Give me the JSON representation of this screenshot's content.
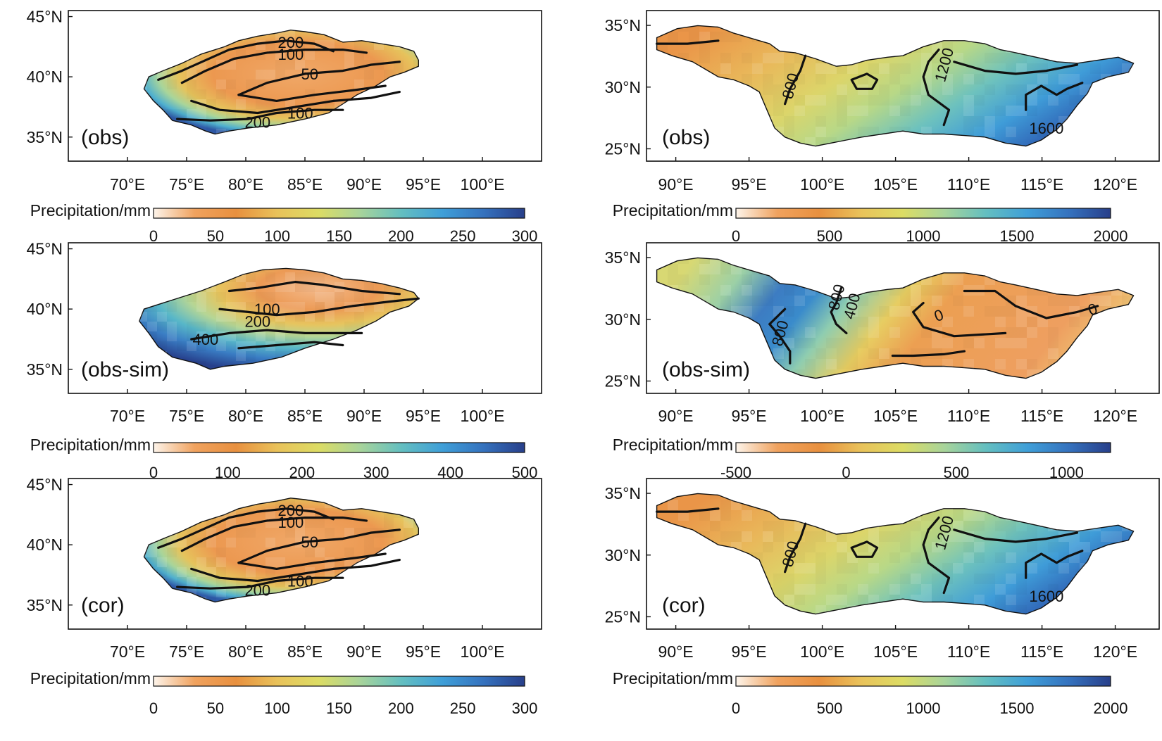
{
  "colormap": {
    "name": "orange-yellow-teal-blue",
    "stops": [
      "#fdf4ea",
      "#f0a25e",
      "#e8903f",
      "#e9c25a",
      "#dcdc64",
      "#a8d49a",
      "#64bfc0",
      "#3f9fd8",
      "#3572be",
      "#283f8a"
    ]
  },
  "panels": [
    {
      "region": "tarim",
      "label": "(obs)",
      "lon_ticks": [
        "70°E",
        "75°E",
        "80°E",
        "85°E",
        "90°E",
        "95°E",
        "100°E"
      ],
      "lat_ticks": [
        "45°N",
        "40°N",
        "35°N"
      ],
      "colorbar": {
        "title": "Precipitation/mm",
        "ticks": [
          "0",
          "50",
          "100",
          "150",
          "200",
          "250",
          "300"
        ],
        "range": [
          0,
          300
        ]
      },
      "contour_labels": [
        "200",
        "100",
        "50",
        "100",
        "200"
      ]
    },
    {
      "region": "yangtze",
      "label": "(obs)",
      "lon_ticks": [
        "90°E",
        "95°E",
        "100°E",
        "105°E",
        "110°E",
        "115°E",
        "120°E"
      ],
      "lat_ticks": [
        "35°N",
        "30°N",
        "25°N"
      ],
      "colorbar": {
        "title": "Precipitation/mm",
        "ticks": [
          "0",
          "500",
          "1000",
          "1500",
          "2000"
        ],
        "range": [
          0,
          2000
        ]
      },
      "contour_labels": [
        "800",
        "1200",
        "1600"
      ]
    },
    {
      "region": "tarim",
      "label": "(obs-sim)",
      "lon_ticks": [
        "70°E",
        "75°E",
        "80°E",
        "85°E",
        "90°E",
        "95°E",
        "100°E"
      ],
      "lat_ticks": [
        "45°N",
        "40°N",
        "35°N"
      ],
      "colorbar": {
        "title": "Precipitation/mm",
        "ticks": [
          "0",
          "100",
          "200",
          "300",
          "400",
          "500"
        ],
        "range": [
          0,
          500
        ]
      },
      "contour_labels": [
        "100",
        "200",
        "400"
      ]
    },
    {
      "region": "yangtze",
      "label": "(obs-sim)",
      "lon_ticks": [
        "90°E",
        "95°E",
        "100°E",
        "105°E",
        "110°E",
        "115°E",
        "120°E"
      ],
      "lat_ticks": [
        "35°N",
        "30°N",
        "25°N"
      ],
      "colorbar": {
        "title": "Precipitation/mm",
        "ticks": [
          "-500",
          "0",
          "500",
          "1000"
        ],
        "range": [
          -500,
          1200
        ]
      },
      "contour_labels": [
        "800",
        "400",
        "0",
        "800",
        "0"
      ]
    },
    {
      "region": "tarim",
      "label": "(cor)",
      "lon_ticks": [
        "70°E",
        "75°E",
        "80°E",
        "85°E",
        "90°E",
        "95°E",
        "100°E"
      ],
      "lat_ticks": [
        "45°N",
        "40°N",
        "35°N"
      ],
      "colorbar": {
        "title": "Precipitation/mm",
        "ticks": [
          "0",
          "50",
          "100",
          "150",
          "200",
          "250",
          "300"
        ],
        "range": [
          0,
          300
        ]
      },
      "contour_labels": [
        "200",
        "100",
        "50",
        "100",
        "200"
      ]
    },
    {
      "region": "yangtze",
      "label": "(cor)",
      "lon_ticks": [
        "90°E",
        "95°E",
        "100°E",
        "105°E",
        "110°E",
        "115°E",
        "120°E"
      ],
      "lat_ticks": [
        "35°N",
        "30°N",
        "25°N"
      ],
      "colorbar": {
        "title": "Precipitation/mm",
        "ticks": [
          "0",
          "500",
          "1000",
          "1500",
          "2000"
        ],
        "range": [
          0,
          2000
        ]
      },
      "contour_labels": [
        "800",
        "1200",
        "1600"
      ]
    }
  ]
}
